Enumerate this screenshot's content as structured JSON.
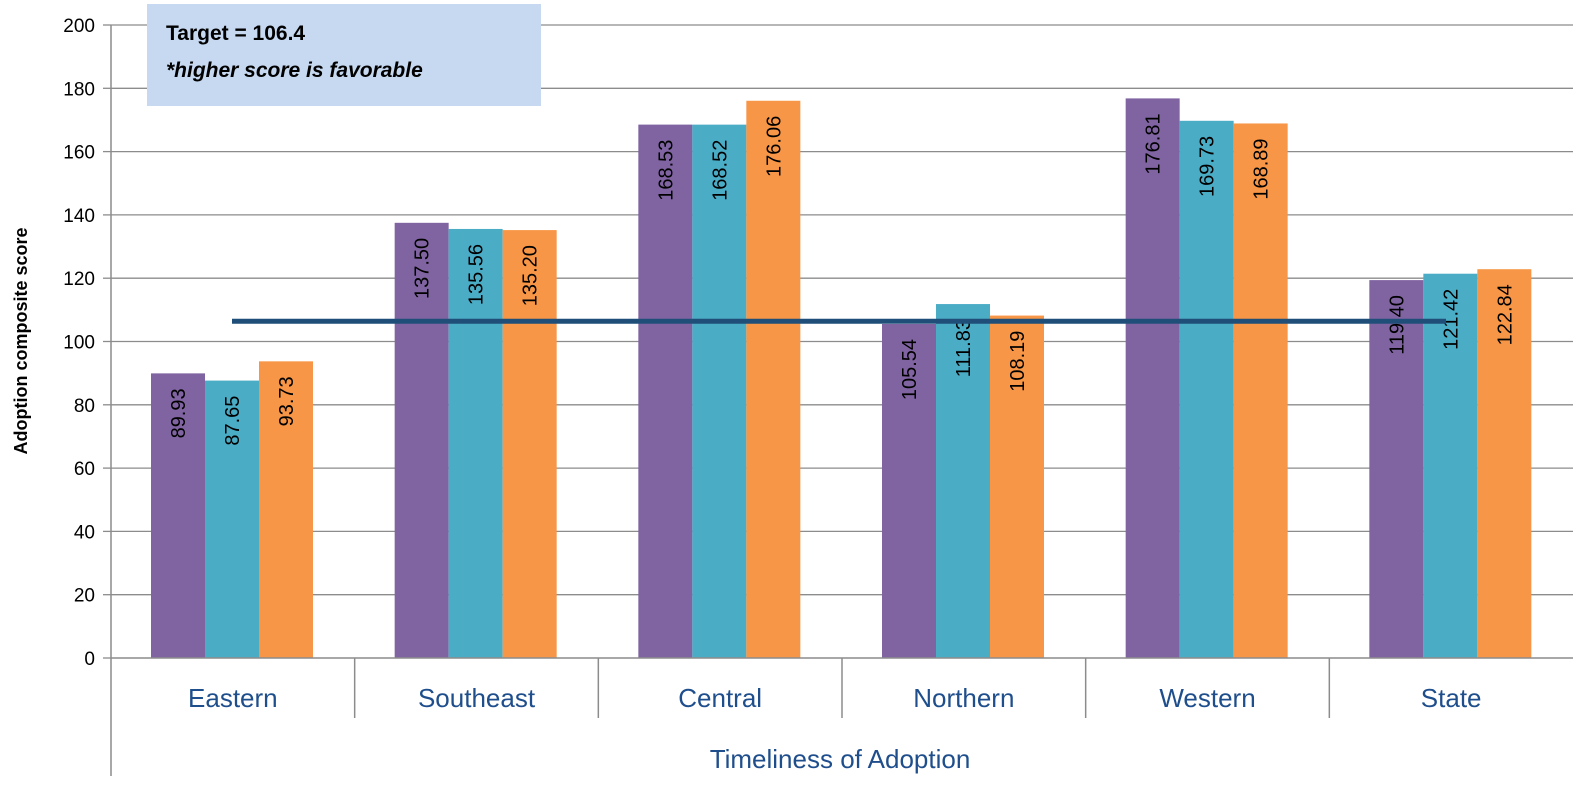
{
  "chart_data": {
    "type": "bar",
    "categories": [
      "Eastern",
      "Southeast",
      "Central",
      "Northern",
      "Western",
      "State"
    ],
    "series": [
      {
        "values": [
          89.93,
          137.5,
          168.53,
          105.54,
          176.81,
          119.4
        ]
      },
      {
        "values": [
          87.65,
          135.56,
          168.52,
          111.83,
          169.73,
          121.42
        ]
      },
      {
        "values": [
          93.73,
          135.2,
          176.06,
          108.19,
          168.89,
          122.84
        ]
      }
    ],
    "value_labels": [
      [
        "89.93",
        "137.50",
        "168.53",
        "105.54",
        "176.81",
        "119.40"
      ],
      [
        "87.65",
        "135.56",
        "168.52",
        "111.83",
        "169.73",
        "121.42"
      ],
      [
        "93.73",
        "135.20",
        "176.06",
        "108.19",
        "168.89",
        "122.84"
      ]
    ],
    "colors": [
      "#8064a2",
      "#4bacc6",
      "#f79646"
    ],
    "target": 106.4,
    "target_color": "#1f4e79",
    "annotation": {
      "line1": "Target = 106.4",
      "line2": "*higher score is favorable",
      "background": "#c6d9f1"
    },
    "title": "",
    "xlabel": "Timeliness of Adoption",
    "ylabel": "Adoption composite score",
    "ylim": [
      0,
      200
    ],
    "yticks": [
      "0",
      "20",
      "40",
      "60",
      "80",
      "100",
      "120",
      "140",
      "160",
      "180",
      "200"
    ],
    "grid": true,
    "legend": "none"
  }
}
